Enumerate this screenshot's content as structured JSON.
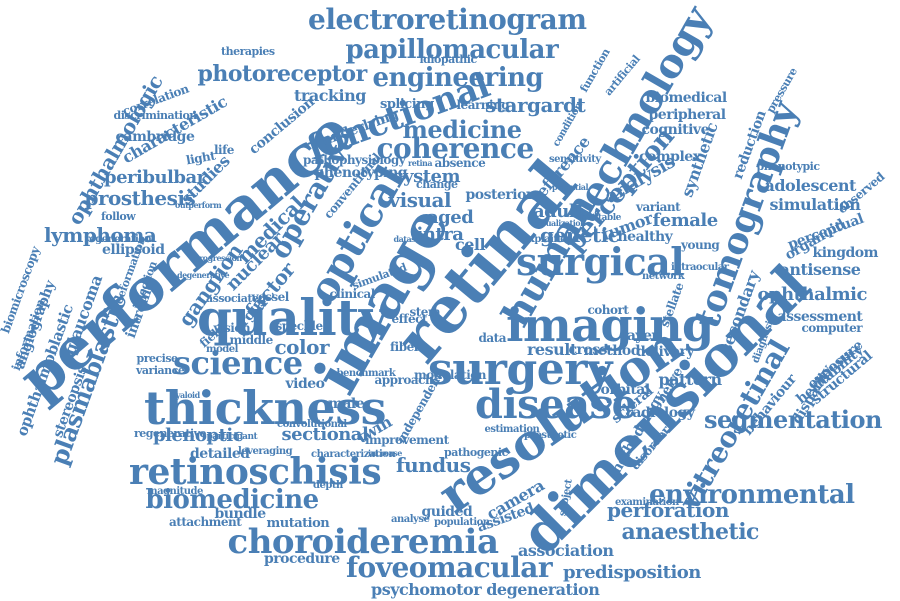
{
  "palette": {
    "word": "#4a7fb5",
    "background": "#ffffff"
  },
  "words": [
    "electroretinogram",
    "papillomacular",
    "engineering",
    "photoreceptor",
    "technology",
    "optical",
    "performance",
    "image",
    "retinal",
    "resolution",
    "dimensional",
    "surgery",
    "imaging",
    "quality",
    "thickness",
    "science",
    "retinoschisis",
    "choroideremia",
    "foveomacular",
    "biomedicine",
    "disease",
    "surgical",
    "functional",
    "coherence",
    "perception",
    "tomography",
    "environmental",
    "vitreoretinal",
    "segmentation",
    "lymphoma",
    "plasmablastic",
    "ophthalmologic",
    "prosthesis",
    "operative",
    "medicine",
    "stargardt",
    "tracking",
    "medical",
    "studies",
    "ganglion",
    "nuclear",
    "factor",
    "argus",
    "visual",
    "system",
    "aged",
    "intra",
    "cell",
    "genetic",
    "adult",
    "analysis",
    "perforation",
    "anaesthetic",
    "association",
    "predisposition",
    "psychomotor degeneration",
    "fundus",
    "sectional",
    "plenoptic",
    "detailed",
    "bundle",
    "video",
    "color",
    "twin",
    "male",
    "camera",
    "guided",
    "assisted",
    "procedure",
    "mutation",
    "attachment",
    "peribulbar",
    "cambridge",
    "characteristic",
    "ellipsoid",
    "glaucoma",
    "intronic",
    "stereopsis",
    "ophthalmoblastic",
    "angiography",
    "biomicroscopy",
    "information",
    "peripheral",
    "biomedical",
    "cognitive",
    "complex",
    "synthetic",
    "reduction",
    "adolescent",
    "simulation",
    "perceptual",
    "organoid",
    "kingdom",
    "antisense",
    "ophthalmic",
    "assessment",
    "computer",
    "heritability",
    "exposure",
    "structural",
    "behaviour",
    "disparity",
    "secondary",
    "methodology",
    "radiology",
    "disorder",
    "pattern",
    "delivery",
    "scleral",
    "orbital",
    "result",
    "method",
    "cross",
    "layer",
    "cohort",
    "stellate",
    "nerve",
    "tumor",
    "healthy",
    "female",
    "young",
    "variant",
    "reference",
    "posterior",
    "human",
    "field",
    "vision",
    "speckle",
    "middle",
    "model",
    "precise",
    "variance",
    "associated",
    "simulated",
    "clinical",
    "fiber",
    "effect",
    "stem",
    "data",
    "life",
    "light",
    "conclusion",
    "underlying",
    "splicing",
    "learning",
    "function",
    "artificial",
    "therapies",
    "idiopathic",
    "correlation",
    "discrimination",
    "pathophysiology",
    "phenotyping",
    "conventional",
    "absence",
    "change",
    "retina",
    "outperform",
    "follow",
    "regeneration",
    "progression",
    "deformation",
    "degenerative",
    "injection",
    "regenerative",
    "magnitude",
    "participant",
    "leveraging",
    "characterization",
    "pathogenic",
    "estimation",
    "prosthetic",
    "analyse",
    "population",
    "subject",
    "examination",
    "improvement",
    "independent",
    "convolutional",
    "hyaloid",
    "depth",
    "increase",
    "benchmark",
    "phenotypic",
    "intraocular",
    "network",
    "condition",
    "sensitivity",
    "potential",
    "explained",
    "heritable",
    "diagnosis",
    "pressure",
    "observed",
    "visualization",
    "approach",
    "modulation",
    "vessel",
    "dataset",
    "iterative",
    "macular"
  ]
}
